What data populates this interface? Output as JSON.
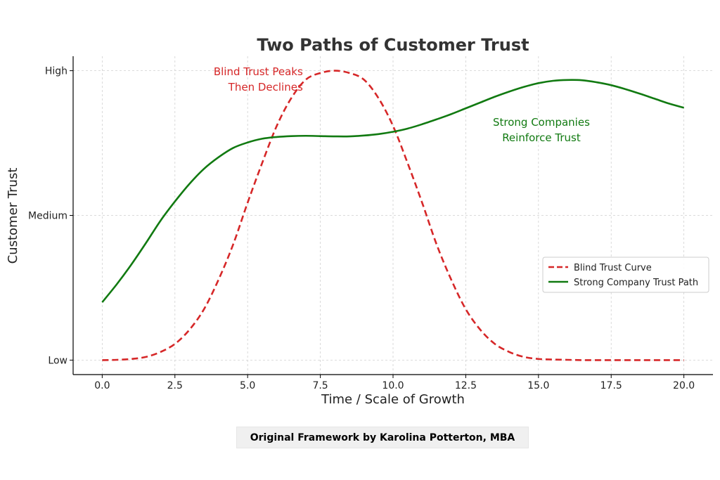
{
  "chart_data": {
    "type": "line",
    "title": "Two Paths of Customer Trust",
    "xlabel": "Time / Scale of Growth",
    "ylabel": "Customer Trust",
    "xlim": [
      -1,
      21.0
    ],
    "ylim": [
      -0.05,
      1.05
    ],
    "x_ticks": [
      0.0,
      2.5,
      5.0,
      7.5,
      10.0,
      12.5,
      15.0,
      17.5,
      20.0
    ],
    "x_tick_labels": [
      "0.0",
      "2.5",
      "5.0",
      "7.5",
      "10.0",
      "12.5",
      "15.0",
      "17.5",
      "20.0"
    ],
    "y_ticks": [
      0,
      0.5,
      1
    ],
    "y_tick_labels": [
      "Low",
      "Medium",
      "High"
    ],
    "grid": true,
    "legend_position": "center-right",
    "series": [
      {
        "name": "Blind Trust Curve",
        "color": "#d62728",
        "style": "dashed",
        "x": [
          0,
          0.5,
          1,
          1.5,
          2,
          2.5,
          3,
          3.5,
          4,
          4.5,
          5,
          5.5,
          6,
          6.5,
          7,
          7.5,
          8,
          8.5,
          9,
          9.5,
          10,
          10.5,
          11,
          11.5,
          12,
          12.5,
          13,
          13.5,
          14,
          14.5,
          15,
          15.5,
          16,
          16.5,
          17,
          17.5,
          18,
          18.5,
          19,
          19.5,
          20
        ],
        "y": [
          0.0,
          0.001,
          0.004,
          0.011,
          0.028,
          0.056,
          0.105,
          0.176,
          0.278,
          0.399,
          0.544,
          0.681,
          0.809,
          0.905,
          0.969,
          0.992,
          1.0,
          0.992,
          0.969,
          0.905,
          0.809,
          0.681,
          0.544,
          0.399,
          0.278,
          0.176,
          0.105,
          0.056,
          0.028,
          0.011,
          0.004,
          0.002,
          0.001,
          0.0,
          0.0,
          0.0,
          0.0,
          0.0,
          0.0,
          0.0,
          0.0
        ]
      },
      {
        "name": "Strong Company Trust Path",
        "color": "#117a11",
        "style": "solid",
        "x": [
          0,
          0.5,
          1,
          1.5,
          2,
          2.5,
          3,
          3.5,
          4,
          4.5,
          5,
          5.5,
          6,
          6.5,
          7,
          7.5,
          8,
          8.5,
          9,
          9.5,
          10,
          10.5,
          11,
          11.5,
          12,
          12.5,
          13,
          13.5,
          14,
          14.5,
          15,
          15.5,
          16,
          16.5,
          17,
          17.5,
          18,
          18.5,
          19,
          19.5,
          20
        ],
        "y": [
          0.2,
          0.262,
          0.33,
          0.404,
          0.481,
          0.548,
          0.609,
          0.661,
          0.701,
          0.733,
          0.752,
          0.765,
          0.771,
          0.774,
          0.775,
          0.774,
          0.773,
          0.773,
          0.776,
          0.781,
          0.789,
          0.8,
          0.815,
          0.832,
          0.85,
          0.87,
          0.89,
          0.91,
          0.928,
          0.944,
          0.957,
          0.965,
          0.968,
          0.967,
          0.96,
          0.95,
          0.936,
          0.92,
          0.903,
          0.886,
          0.872
        ]
      }
    ],
    "annotations": [
      {
        "text_lines": [
          "Blind Trust Peaks",
          "Then Declines"
        ],
        "color": "#d62728",
        "x": 6.9,
        "y": 0.985,
        "align": "end"
      },
      {
        "text_lines": [
          "Strong Companies",
          "Reinforce Trust"
        ],
        "color": "#117a11",
        "x": 15.1,
        "y": 0.81,
        "align": "middle"
      }
    ]
  },
  "credit": "Original Framework by Karolina Potterton, MBA"
}
